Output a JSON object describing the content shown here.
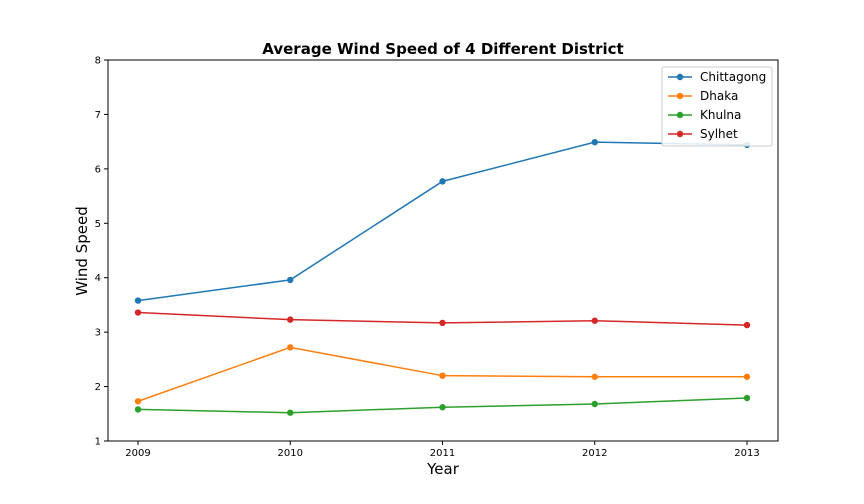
{
  "chart_data": {
    "type": "line",
    "title": "Average Wind Speed of 4 Different District",
    "xlabel": "Year",
    "ylabel": "Wind Speed",
    "x": [
      "2009",
      "2010",
      "2011",
      "2012",
      "2013"
    ],
    "ylim": [
      1,
      8
    ],
    "yticks": [
      "1",
      "2",
      "3",
      "4",
      "5",
      "6",
      "7",
      "8"
    ],
    "grid": false,
    "legend_position": "top-right",
    "series": [
      {
        "name": "Chittagong",
        "color": "#1f77b4",
        "values": [
          3.58,
          3.96,
          5.77,
          6.49,
          6.44
        ]
      },
      {
        "name": "Dhaka",
        "color": "#ff7f0e",
        "values": [
          1.73,
          2.72,
          2.2,
          2.18,
          2.18
        ]
      },
      {
        "name": "Khulna",
        "color": "#2ca02c",
        "values": [
          1.58,
          1.52,
          1.62,
          1.68,
          1.79
        ]
      },
      {
        "name": "Sylhet",
        "color": "#d62728",
        "values": [
          3.36,
          3.23,
          3.17,
          3.21,
          3.13
        ]
      }
    ]
  }
}
